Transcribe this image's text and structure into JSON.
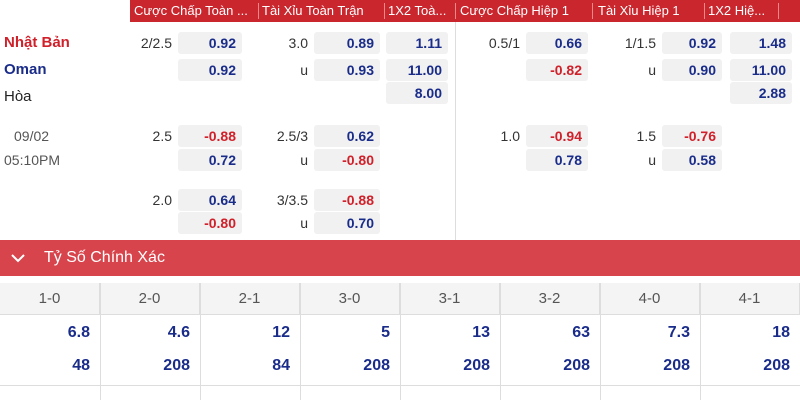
{
  "header": {
    "columns": [
      "Cược Chấp Toàn ...",
      "Tài Xỉu Toàn Trận",
      "1X2 Toà...",
      "Cược Chấp Hiệp 1",
      "Tài Xỉu Hiệp 1",
      "1X2 Hiệ..."
    ]
  },
  "teams": [
    "Nhật Bản",
    "Oman",
    "Hòa"
  ],
  "match": {
    "date": "09/02",
    "time": "05:10PM"
  },
  "markets": [
    {
      "ft_handicap": {
        "line": "2/2.5",
        "home": "0.92",
        "away": "0.92"
      },
      "ft_total": {
        "line": "3.0",
        "over": "0.89",
        "under_label": "u",
        "under": "0.93"
      },
      "ft_1x2": [
        "1.11",
        "11.00",
        "8.00"
      ],
      "h1_handicap": {
        "line": "0.5/1",
        "home": "0.66",
        "away": "-0.82"
      },
      "h1_total": {
        "line": "1/1.5",
        "over": "0.92",
        "under_label": "u",
        "under": "0.90"
      },
      "h1_1x2": [
        "1.48",
        "11.00",
        "2.88"
      ]
    },
    {
      "ft_handicap": {
        "line": "2.5",
        "home": "-0.88",
        "away": "0.72"
      },
      "ft_total": {
        "line": "2.5/3",
        "over": "0.62",
        "under_label": "u",
        "under": "-0.80"
      },
      "h1_handicap": {
        "line": "1.0",
        "home": "-0.94",
        "away": "0.78"
      },
      "h1_total": {
        "line": "1.5",
        "over": "-0.76",
        "under_label": "u",
        "under": "0.58"
      }
    },
    {
      "ft_handicap": {
        "line": "2.0",
        "home": "0.64",
        "away": "-0.80"
      },
      "ft_total": {
        "line": "3/3.5",
        "over": "-0.88",
        "under_label": "u",
        "under": "0.70"
      }
    }
  ],
  "correct_score": {
    "title": "Tỷ Số Chính Xác",
    "columns": [
      {
        "score": "1-0",
        "values": [
          "6.8",
          "48"
        ]
      },
      {
        "score": "2-0",
        "values": [
          "4.6",
          "208"
        ]
      },
      {
        "score": "2-1",
        "values": [
          "12",
          "84"
        ]
      },
      {
        "score": "3-0",
        "values": [
          "5",
          "208"
        ]
      },
      {
        "score": "3-1",
        "values": [
          "13",
          "208"
        ]
      },
      {
        "score": "3-2",
        "values": [
          "63",
          "208"
        ]
      },
      {
        "score": "4-0",
        "values": [
          "7.3",
          "208"
        ]
      },
      {
        "score": "4-1",
        "values": [
          "18",
          "208"
        ]
      }
    ]
  }
}
